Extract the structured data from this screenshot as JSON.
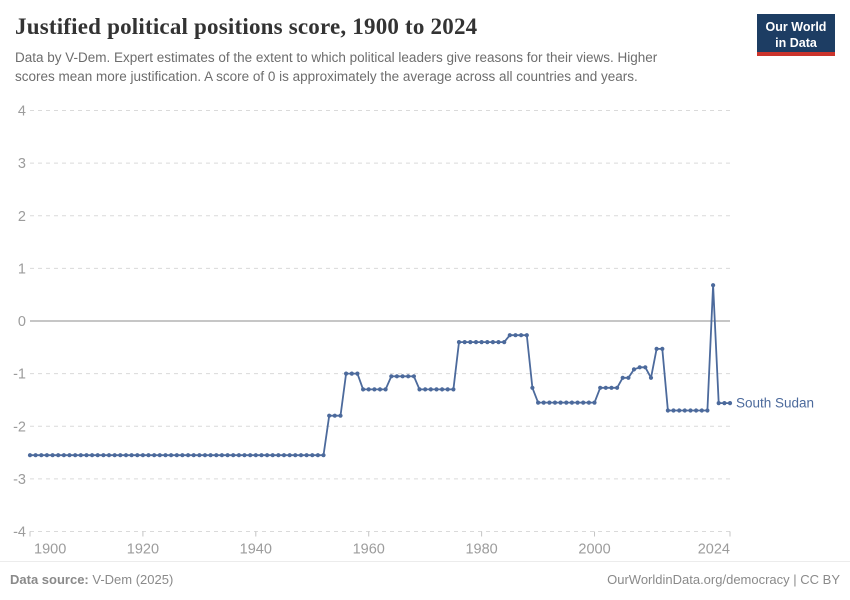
{
  "header": {
    "title": "Justified political positions score, 1900 to 2024",
    "subtitle_line1": "Data by V-Dem. Expert estimates of the extent to which political leaders give reasons for their views. Higher",
    "subtitle_line2": "scores mean more justification. A score of 0 is approximately the average across all countries and years."
  },
  "logo": {
    "line1": "Our World",
    "line2": "in Data",
    "bg_color": "#1d3d63",
    "stripe_color": "#cb342c"
  },
  "footer": {
    "source_label": "Data source:",
    "source_value": " V-Dem (2025)",
    "right_text": "OurWorldinData.org/democracy | CC BY"
  },
  "chart_data": {
    "type": "line",
    "title": "Justified political positions score, 1900 to 2024",
    "xlabel": "",
    "ylabel": "",
    "x_range": [
      1900,
      2024
    ],
    "ylim": [
      -4,
      4
    ],
    "grid": "horizontal dashed, solid line at 0",
    "legend_position": "end-of-line label",
    "y_ticks": [
      4,
      3,
      2,
      1,
      0,
      -1,
      -2,
      -3,
      -4
    ],
    "x_ticks": [
      1900,
      1920,
      1940,
      1960,
      1980,
      2000,
      2024
    ],
    "series": [
      {
        "name": "South Sudan",
        "color": "#4c6a9c",
        "points": [
          [
            1900,
            -2.55
          ],
          [
            1901,
            -2.55
          ],
          [
            1902,
            -2.55
          ],
          [
            1903,
            -2.55
          ],
          [
            1904,
            -2.55
          ],
          [
            1905,
            -2.55
          ],
          [
            1906,
            -2.55
          ],
          [
            1907,
            -2.55
          ],
          [
            1908,
            -2.55
          ],
          [
            1909,
            -2.55
          ],
          [
            1910,
            -2.55
          ],
          [
            1911,
            -2.55
          ],
          [
            1912,
            -2.55
          ],
          [
            1913,
            -2.55
          ],
          [
            1914,
            -2.55
          ],
          [
            1915,
            -2.55
          ],
          [
            1916,
            -2.55
          ],
          [
            1917,
            -2.55
          ],
          [
            1918,
            -2.55
          ],
          [
            1919,
            -2.55
          ],
          [
            1920,
            -2.55
          ],
          [
            1921,
            -2.55
          ],
          [
            1922,
            -2.55
          ],
          [
            1923,
            -2.55
          ],
          [
            1924,
            -2.55
          ],
          [
            1925,
            -2.55
          ],
          [
            1926,
            -2.55
          ],
          [
            1927,
            -2.55
          ],
          [
            1928,
            -2.55
          ],
          [
            1929,
            -2.55
          ],
          [
            1930,
            -2.55
          ],
          [
            1931,
            -2.55
          ],
          [
            1932,
            -2.55
          ],
          [
            1933,
            -2.55
          ],
          [
            1934,
            -2.55
          ],
          [
            1935,
            -2.55
          ],
          [
            1936,
            -2.55
          ],
          [
            1937,
            -2.55
          ],
          [
            1938,
            -2.55
          ],
          [
            1939,
            -2.55
          ],
          [
            1940,
            -2.55
          ],
          [
            1941,
            -2.55
          ],
          [
            1942,
            -2.55
          ],
          [
            1943,
            -2.55
          ],
          [
            1944,
            -2.55
          ],
          [
            1945,
            -2.55
          ],
          [
            1946,
            -2.55
          ],
          [
            1947,
            -2.55
          ],
          [
            1948,
            -2.55
          ],
          [
            1949,
            -2.55
          ],
          [
            1950,
            -2.55
          ],
          [
            1951,
            -2.55
          ],
          [
            1952,
            -2.55
          ],
          [
            1953,
            -1.8
          ],
          [
            1954,
            -1.8
          ],
          [
            1955,
            -1.8
          ],
          [
            1956,
            -1.0
          ],
          [
            1957,
            -1.0
          ],
          [
            1958,
            -1.0
          ],
          [
            1959,
            -1.3
          ],
          [
            1960,
            -1.3
          ],
          [
            1961,
            -1.3
          ],
          [
            1962,
            -1.3
          ],
          [
            1963,
            -1.3
          ],
          [
            1964,
            -1.05
          ],
          [
            1965,
            -1.05
          ],
          [
            1966,
            -1.05
          ],
          [
            1967,
            -1.05
          ],
          [
            1968,
            -1.05
          ],
          [
            1969,
            -1.3
          ],
          [
            1970,
            -1.3
          ],
          [
            1971,
            -1.3
          ],
          [
            1972,
            -1.3
          ],
          [
            1973,
            -1.3
          ],
          [
            1974,
            -1.3
          ],
          [
            1975,
            -1.3
          ],
          [
            1976,
            -0.4
          ],
          [
            1977,
            -0.4
          ],
          [
            1978,
            -0.4
          ],
          [
            1979,
            -0.4
          ],
          [
            1980,
            -0.4
          ],
          [
            1981,
            -0.4
          ],
          [
            1982,
            -0.4
          ],
          [
            1983,
            -0.4
          ],
          [
            1984,
            -0.4
          ],
          [
            1985,
            -0.27
          ],
          [
            1986,
            -0.27
          ],
          [
            1987,
            -0.27
          ],
          [
            1988,
            -0.27
          ],
          [
            1989,
            -1.27
          ],
          [
            1990,
            -1.55
          ],
          [
            1991,
            -1.55
          ],
          [
            1992,
            -1.55
          ],
          [
            1993,
            -1.55
          ],
          [
            1994,
            -1.55
          ],
          [
            1995,
            -1.55
          ],
          [
            1996,
            -1.55
          ],
          [
            1997,
            -1.55
          ],
          [
            1998,
            -1.55
          ],
          [
            1999,
            -1.55
          ],
          [
            2000,
            -1.55
          ],
          [
            2001,
            -1.27
          ],
          [
            2002,
            -1.27
          ],
          [
            2003,
            -1.27
          ],
          [
            2004,
            -1.27
          ],
          [
            2005,
            -1.08
          ],
          [
            2006,
            -1.08
          ],
          [
            2007,
            -0.92
          ],
          [
            2008,
            -0.88
          ],
          [
            2009,
            -0.88
          ],
          [
            2010,
            -1.08
          ],
          [
            2011,
            -0.53
          ],
          [
            2012,
            -0.53
          ],
          [
            2013,
            -1.7
          ],
          [
            2014,
            -1.7
          ],
          [
            2015,
            -1.7
          ],
          [
            2016,
            -1.7
          ],
          [
            2017,
            -1.7
          ],
          [
            2018,
            -1.7
          ],
          [
            2019,
            -1.7
          ],
          [
            2020,
            -1.7
          ],
          [
            2021,
            0.68
          ],
          [
            2022,
            -1.56
          ],
          [
            2023,
            -1.56
          ],
          [
            2024,
            -1.56
          ]
        ]
      }
    ]
  }
}
